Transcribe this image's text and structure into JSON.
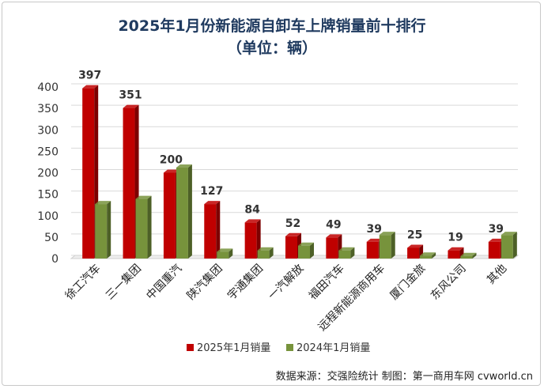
{
  "chart_data": {
    "type": "bar",
    "title": "2025年1月份新能源自卸车上牌销量前十排行",
    "subtitle": "（单位：辆）",
    "categories": [
      "徐工汽车",
      "三一集团",
      "中国重汽",
      "陕汽集团",
      "宇通集团",
      "一汽解放",
      "福田汽车",
      "远程新能源商用车",
      "厦门金旅",
      "东风公司",
      "其他"
    ],
    "series": [
      {
        "name": "2025年1月销量",
        "color": "#c00000",
        "values": [
          397,
          351,
          200,
          127,
          84,
          52,
          49,
          39,
          25,
          19,
          39
        ]
      },
      {
        "name": "2024年1月销量",
        "color": "#77933c",
        "values": [
          127,
          139,
          212,
          16,
          19,
          30,
          19,
          55,
          7,
          6,
          55
        ]
      }
    ],
    "data_labels": [
      "397",
      "351",
      "200",
      "127",
      "84",
      "52",
      "49",
      "39",
      "25",
      "19",
      "39"
    ],
    "yticks": [
      "0",
      "50",
      "100",
      "150",
      "200",
      "250",
      "300",
      "350",
      "400"
    ],
    "ylim": [
      0,
      400
    ],
    "grid": true,
    "legend_position": "bottom"
  },
  "footer": {
    "credit": "数据来源：交强险统计   制图：第一商用车网 cvworld.cn"
  }
}
